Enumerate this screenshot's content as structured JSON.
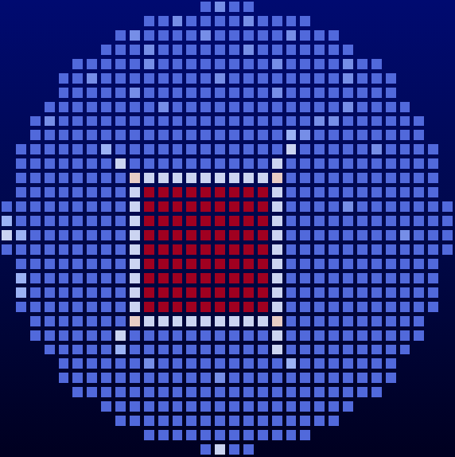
{
  "chart_data": {
    "type": "heatmap",
    "tick_labels": false,
    "zlim": [
      0,
      9
    ],
    "cells": [
      [
        null,
        null,
        null,
        null,
        null,
        null,
        null,
        null,
        null,
        null,
        null,
        null,
        null,
        null,
        2,
        3,
        2,
        2,
        null,
        null,
        null,
        null,
        null,
        null,
        null,
        null,
        null,
        null,
        null,
        null,
        null,
        null
      ],
      [
        null,
        null,
        null,
        null,
        null,
        null,
        null,
        null,
        null,
        null,
        2,
        2,
        3,
        2,
        2,
        2,
        2,
        3,
        2,
        2,
        2,
        2,
        null,
        null,
        null,
        null,
        null,
        null,
        null,
        null,
        null,
        null
      ],
      [
        null,
        null,
        null,
        null,
        null,
        null,
        null,
        null,
        2,
        3,
        2,
        2,
        2,
        2,
        3,
        2,
        2,
        2,
        2,
        2,
        3,
        2,
        2,
        2,
        null,
        null,
        null,
        null,
        null,
        null,
        null,
        null
      ],
      [
        null,
        null,
        null,
        null,
        null,
        null,
        null,
        2,
        2,
        2,
        3,
        2,
        2,
        2,
        2,
        2,
        2,
        3,
        2,
        2,
        2,
        2,
        2,
        2,
        2,
        null,
        null,
        null,
        null,
        null,
        null,
        null
      ],
      [
        null,
        null,
        null,
        null,
        null,
        2,
        2,
        2,
        2,
        2,
        3,
        2,
        2,
        2,
        2,
        2,
        2,
        2,
        2,
        3,
        2,
        2,
        2,
        2,
        3,
        2,
        2,
        null,
        null,
        null,
        null,
        null
      ],
      [
        null,
        null,
        null,
        null,
        2,
        2,
        3,
        2,
        2,
        2,
        2,
        2,
        2,
        2,
        2,
        3,
        2,
        2,
        2,
        2,
        2,
        2,
        2,
        2,
        3,
        2,
        2,
        2,
        null,
        null,
        null,
        null
      ],
      [
        null,
        null,
        null,
        null,
        2,
        2,
        2,
        2,
        2,
        3,
        2,
        2,
        2,
        2,
        2,
        2,
        2,
        2,
        2,
        3,
        2,
        2,
        2,
        2,
        2,
        2,
        2,
        2,
        null,
        null,
        null,
        null
      ],
      [
        null,
        null,
        null,
        2,
        2,
        2,
        2,
        2,
        2,
        2,
        2,
        3,
        2,
        2,
        2,
        2,
        2,
        2,
        2,
        2,
        2,
        2,
        2,
        2,
        3,
        2,
        2,
        2,
        2,
        null,
        null,
        null
      ],
      [
        null,
        null,
        2,
        3,
        2,
        2,
        2,
        2,
        2,
        2,
        2,
        2,
        2,
        2,
        2,
        2,
        2,
        2,
        2,
        2,
        2,
        2,
        3,
        3,
        2,
        2,
        2,
        2,
        2,
        2,
        null,
        null
      ],
      [
        null,
        null,
        2,
        2,
        2,
        2,
        2,
        2,
        2,
        2,
        2,
        2,
        2,
        2,
        2,
        2,
        2,
        2,
        2,
        2,
        4,
        3,
        2,
        2,
        2,
        2,
        2,
        2,
        2,
        2,
        null,
        null
      ],
      [
        null,
        2,
        2,
        2,
        2,
        2,
        2,
        4,
        2,
        2,
        2,
        2,
        2,
        2,
        2,
        2,
        2,
        2,
        2,
        2,
        5,
        2,
        2,
        2,
        2,
        2,
        3,
        2,
        2,
        2,
        2,
        null
      ],
      [
        null,
        2,
        2,
        2,
        2,
        2,
        2,
        2,
        5,
        2,
        2,
        2,
        2,
        2,
        2,
        2,
        2,
        2,
        2,
        5,
        2,
        2,
        2,
        2,
        2,
        2,
        2,
        2,
        2,
        2,
        2,
        null
      ],
      [
        null,
        2,
        2,
        2,
        2,
        2,
        2,
        2,
        2,
        6,
        5,
        5,
        5,
        5,
        5,
        5,
        5,
        5,
        5,
        6,
        2,
        2,
        2,
        2,
        2,
        2,
        2,
        2,
        2,
        2,
        2,
        null
      ],
      [
        null,
        2,
        2,
        2,
        2,
        2,
        2,
        2,
        2,
        5,
        9,
        9,
        9,
        9,
        9,
        9,
        9,
        9,
        9,
        5,
        2,
        2,
        2,
        2,
        2,
        2,
        2,
        2,
        2,
        2,
        2,
        null
      ],
      [
        2,
        2,
        2,
        2,
        2,
        2,
        2,
        2,
        2,
        5,
        9,
        9,
        9,
        9,
        9,
        9,
        9,
        9,
        9,
        5,
        2,
        2,
        2,
        2,
        3,
        2,
        2,
        2,
        2,
        2,
        2,
        2
      ],
      [
        4,
        2,
        2,
        2,
        2,
        2,
        2,
        2,
        2,
        5,
        9,
        9,
        9,
        9,
        9,
        9,
        9,
        9,
        9,
        5,
        2,
        2,
        2,
        2,
        2,
        2,
        2,
        2,
        2,
        2,
        2,
        2
      ],
      [
        5,
        4,
        2,
        2,
        2,
        2,
        2,
        2,
        2,
        5,
        9,
        9,
        9,
        9,
        9,
        9,
        9,
        9,
        9,
        5,
        2,
        2,
        2,
        2,
        2,
        2,
        2,
        2,
        3,
        2,
        2,
        2
      ],
      [
        2,
        2,
        2,
        2,
        2,
        2,
        2,
        2,
        2,
        5,
        9,
        9,
        9,
        9,
        9,
        9,
        9,
        9,
        9,
        5,
        2,
        2,
        2,
        2,
        2,
        2,
        2,
        2,
        2,
        2,
        2,
        2
      ],
      [
        null,
        2,
        2,
        2,
        2,
        2,
        2,
        2,
        2,
        5,
        9,
        9,
        9,
        9,
        9,
        9,
        9,
        9,
        9,
        5,
        2,
        2,
        2,
        2,
        2,
        2,
        2,
        2,
        2,
        2,
        2,
        null
      ],
      [
        null,
        4,
        2,
        2,
        2,
        2,
        2,
        2,
        2,
        5,
        9,
        9,
        9,
        9,
        9,
        9,
        9,
        9,
        9,
        5,
        2,
        2,
        2,
        2,
        2,
        2,
        2,
        2,
        2,
        2,
        2,
        null
      ],
      [
        null,
        4,
        2,
        2,
        2,
        2,
        2,
        2,
        2,
        5,
        9,
        9,
        9,
        9,
        9,
        9,
        9,
        9,
        9,
        5,
        2,
        2,
        2,
        2,
        2,
        2,
        2,
        2,
        2,
        2,
        2,
        null
      ],
      [
        null,
        2,
        2,
        2,
        2,
        2,
        2,
        2,
        2,
        5,
        9,
        9,
        9,
        9,
        9,
        9,
        9,
        9,
        9,
        5,
        2,
        2,
        2,
        2,
        2,
        2,
        2,
        2,
        2,
        2,
        2,
        null
      ],
      [
        null,
        null,
        2,
        2,
        2,
        2,
        2,
        2,
        2,
        6,
        5,
        5,
        5,
        5,
        5,
        5,
        5,
        5,
        5,
        6,
        2,
        2,
        2,
        2,
        2,
        2,
        2,
        2,
        2,
        2,
        null,
        null
      ],
      [
        null,
        null,
        2,
        2,
        2,
        2,
        2,
        2,
        5,
        2,
        2,
        2,
        2,
        2,
        2,
        2,
        2,
        2,
        2,
        5,
        2,
        2,
        2,
        2,
        2,
        2,
        2,
        2,
        2,
        2,
        null,
        null
      ],
      [
        null,
        null,
        null,
        2,
        2,
        2,
        2,
        2,
        4,
        2,
        2,
        2,
        2,
        2,
        2,
        2,
        2,
        2,
        2,
        5,
        2,
        2,
        2,
        2,
        2,
        2,
        2,
        2,
        2,
        null,
        null,
        null
      ],
      [
        null,
        null,
        null,
        null,
        2,
        2,
        2,
        2,
        2,
        2,
        3,
        2,
        2,
        2,
        2,
        2,
        2,
        2,
        2,
        2,
        4,
        2,
        2,
        2,
        2,
        2,
        2,
        2,
        null,
        null,
        null,
        null
      ],
      [
        null,
        null,
        null,
        null,
        2,
        2,
        2,
        2,
        2,
        2,
        2,
        2,
        2,
        2,
        2,
        3,
        2,
        2,
        2,
        2,
        2,
        2,
        2,
        2,
        2,
        2,
        2,
        2,
        null,
        null,
        null,
        null
      ],
      [
        null,
        null,
        null,
        null,
        null,
        2,
        2,
        2,
        2,
        2,
        2,
        2,
        2,
        2,
        2,
        2,
        2,
        2,
        2,
        2,
        2,
        2,
        2,
        2,
        2,
        2,
        2,
        null,
        null,
        null,
        null,
        null
      ],
      [
        null,
        null,
        null,
        null,
        null,
        null,
        null,
        2,
        2,
        2,
        2,
        2,
        2,
        2,
        2,
        2,
        2,
        2,
        2,
        2,
        2,
        2,
        2,
        2,
        2,
        null,
        null,
        null,
        null,
        null,
        null,
        null
      ],
      [
        null,
        null,
        null,
        null,
        null,
        null,
        null,
        null,
        2,
        2,
        2,
        2,
        2,
        2,
        2,
        2,
        2,
        2,
        2,
        2,
        2,
        2,
        2,
        2,
        null,
        null,
        null,
        null,
        null,
        null,
        null,
        null
      ],
      [
        null,
        null,
        null,
        null,
        null,
        null,
        null,
        null,
        null,
        null,
        2,
        2,
        2,
        2,
        2,
        2,
        2,
        2,
        2,
        2,
        2,
        2,
        null,
        null,
        null,
        null,
        null,
        null,
        null,
        null,
        null,
        null
      ],
      [
        null,
        null,
        null,
        null,
        null,
        null,
        null,
        null,
        null,
        null,
        null,
        null,
        null,
        null,
        2,
        5,
        2,
        2,
        null,
        null,
        null,
        null,
        null,
        null,
        null,
        null,
        null,
        null,
        null,
        null,
        null,
        null
      ]
    ]
  }
}
